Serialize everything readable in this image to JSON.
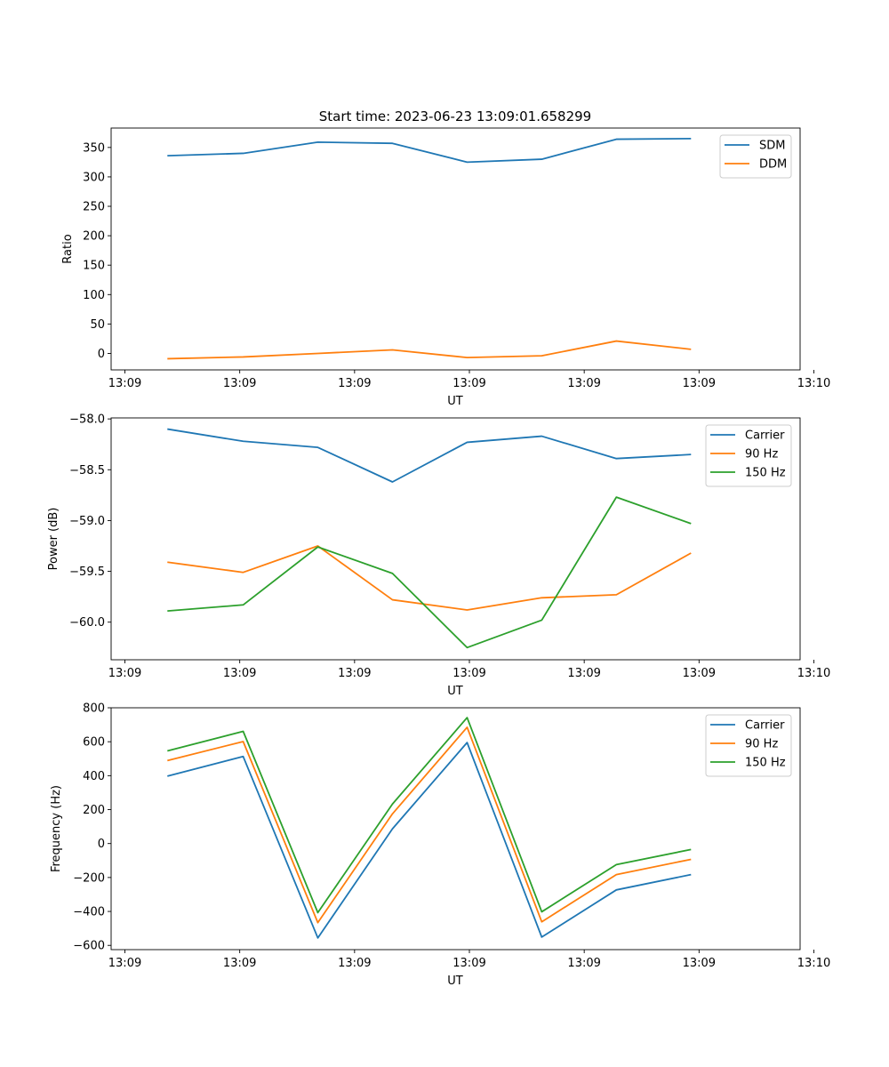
{
  "figure": {
    "title": "Start time: 2023-06-23 13:09:01.658299"
  },
  "chart_data": [
    {
      "type": "line",
      "title": "Start time: 2023-06-23 13:09:01.658299",
      "xlabel": "UT",
      "ylabel": "Ratio",
      "x_tick_labels": [
        "13:09",
        "13:09",
        "13:09",
        "13:09",
        "13:09",
        "13:09",
        "13:10"
      ],
      "y_ticks": [
        0,
        50,
        100,
        150,
        200,
        250,
        300,
        350
      ],
      "y_tick_labels": [
        "0",
        "50",
        "100",
        "150",
        "200",
        "250",
        "300",
        "350"
      ],
      "xlim": [
        -1.2,
        58.8
      ],
      "ylim": [
        -28,
        383
      ],
      "x": [
        3.7,
        10.3,
        16.8,
        23.3,
        29.8,
        36.3,
        42.8,
        49.3
      ],
      "series": [
        {
          "name": "SDM",
          "color": "#1f77b4",
          "values": [
            336,
            340,
            359,
            357,
            325,
            330,
            364,
            365
          ]
        },
        {
          "name": "DDM",
          "color": "#ff7f0e",
          "values": [
            -9,
            -6,
            0,
            6,
            -7,
            -4,
            21,
            7
          ]
        }
      ],
      "grid": false,
      "legend": "top-right"
    },
    {
      "type": "line",
      "title": "",
      "xlabel": "UT",
      "ylabel": "Power (dB)",
      "x_tick_labels": [
        "13:09",
        "13:09",
        "13:09",
        "13:09",
        "13:09",
        "13:09",
        "13:10"
      ],
      "y_ticks": [
        -60.0,
        -59.5,
        -59.0,
        -58.5,
        -58.0
      ],
      "y_tick_labels": [
        "−60.0",
        "−59.5",
        "−59.0",
        "−58.5",
        "−58.0"
      ],
      "xlim": [
        -1.2,
        58.8
      ],
      "ylim": [
        -60.37,
        -57.99
      ],
      "x": [
        3.7,
        10.3,
        16.8,
        23.3,
        29.8,
        36.3,
        42.8,
        49.3
      ],
      "series": [
        {
          "name": "Carrier",
          "color": "#1f77b4",
          "values": [
            -58.1,
            -58.22,
            -58.28,
            -58.62,
            -58.23,
            -58.17,
            -58.39,
            -58.35
          ]
        },
        {
          "name": "90 Hz",
          "color": "#ff7f0e",
          "values": [
            -59.41,
            -59.51,
            -59.25,
            -59.78,
            -59.88,
            -59.76,
            -59.73,
            -59.32
          ]
        },
        {
          "name": "150 Hz",
          "color": "#2ca02c",
          "values": [
            -59.89,
            -59.83,
            -59.26,
            -59.52,
            -60.25,
            -59.98,
            -58.77,
            -59.03
          ]
        }
      ],
      "grid": false,
      "legend": "top-right"
    },
    {
      "type": "line",
      "title": "",
      "xlabel": "UT",
      "ylabel": "Frequency (Hz)",
      "x_tick_labels": [
        "13:09",
        "13:09",
        "13:09",
        "13:09",
        "13:09",
        "13:09",
        "13:10"
      ],
      "y_ticks": [
        -600,
        -400,
        -200,
        0,
        200,
        400,
        600,
        800
      ],
      "y_tick_labels": [
        "−600",
        "−400",
        "−200",
        "0",
        "200",
        "400",
        "600",
        "800"
      ],
      "xlim": [
        -1.2,
        58.8
      ],
      "ylim": [
        -625,
        800
      ],
      "x": [
        3.7,
        10.3,
        16.8,
        23.3,
        29.8,
        36.3,
        42.8,
        49.3
      ],
      "series": [
        {
          "name": "Carrier",
          "color": "#1f77b4",
          "values": [
            397,
            513,
            -556,
            87,
            595,
            -551,
            -273,
            -183
          ]
        },
        {
          "name": "90 Hz",
          "color": "#ff7f0e",
          "values": [
            489,
            601,
            -466,
            175,
            685,
            -461,
            -183,
            -93
          ]
        },
        {
          "name": "150 Hz",
          "color": "#2ca02c",
          "values": [
            546,
            661,
            -407,
            233,
            742,
            -402,
            -124,
            -35
          ]
        }
      ],
      "grid": false,
      "legend": "top-right"
    }
  ]
}
